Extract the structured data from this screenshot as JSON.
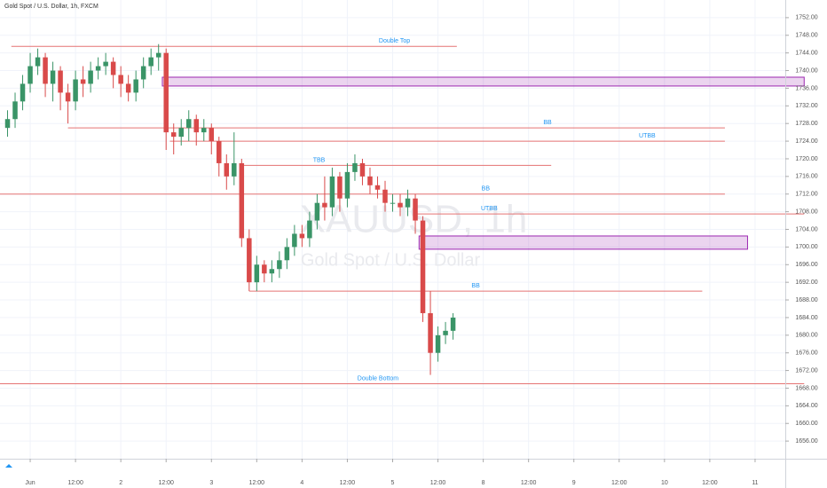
{
  "chart_data": {
    "type": "candlestick",
    "title": "Gold Spot / U.S. Dollar, 1h, FXCM",
    "watermark": "XAUUSD, 1h",
    "watermark_subtitle": "Gold Spot / U.S. Dollar",
    "up_color": "#3a9467",
    "down_color": "#d94a4a",
    "grid": true,
    "xlim": [
      -8,
      200
    ],
    "ylim": [
      1652,
      1756
    ],
    "xticks": [
      {
        "value": 0,
        "label": "Jun"
      },
      {
        "value": 12,
        "label": "12:00"
      },
      {
        "value": 24,
        "label": "2"
      },
      {
        "value": 36,
        "label": "12:00"
      },
      {
        "value": 48,
        "label": "3"
      },
      {
        "value": 60,
        "label": "12:00"
      },
      {
        "value": 72,
        "label": "4"
      },
      {
        "value": 84,
        "label": "12:00"
      },
      {
        "value": 96,
        "label": "5"
      },
      {
        "value": 108,
        "label": "12:00"
      },
      {
        "value": 120,
        "label": "8"
      },
      {
        "value": 132,
        "label": "12:00"
      },
      {
        "value": 144,
        "label": "9"
      },
      {
        "value": 156,
        "label": "12:00"
      },
      {
        "value": 168,
        "label": "10"
      },
      {
        "value": 180,
        "label": "12:00"
      },
      {
        "value": 192,
        "label": "11"
      }
    ],
    "yticks": [
      {
        "value": 1656,
        "label": "1656.00"
      },
      {
        "value": 1660,
        "label": "1660.00"
      },
      {
        "value": 1664,
        "label": "1664.00"
      },
      {
        "value": 1668,
        "label": "1668.00"
      },
      {
        "value": 1672,
        "label": "1672.00"
      },
      {
        "value": 1676,
        "label": "1676.00"
      },
      {
        "value": 1680,
        "label": "1680.00"
      },
      {
        "value": 1684,
        "label": "1684.00"
      },
      {
        "value": 1688,
        "label": "1688.00"
      },
      {
        "value": 1692,
        "label": "1692.00"
      },
      {
        "value": 1696,
        "label": "1696.00"
      },
      {
        "value": 1700,
        "label": "1700.00"
      },
      {
        "value": 1704,
        "label": "1704.00"
      },
      {
        "value": 1708,
        "label": "1708.00"
      },
      {
        "value": 1712,
        "label": "1712.00"
      },
      {
        "value": 1716,
        "label": "1716.00"
      },
      {
        "value": 1720,
        "label": "1720.00"
      },
      {
        "value": 1724,
        "label": "1724.00"
      },
      {
        "value": 1728,
        "label": "1728.00"
      },
      {
        "value": 1732,
        "label": "1732.00"
      },
      {
        "value": 1736,
        "label": "1736.00"
      },
      {
        "value": 1740,
        "label": "1740.00"
      },
      {
        "value": 1744,
        "label": "1744.00"
      },
      {
        "value": 1748,
        "label": "1748.00"
      },
      {
        "value": 1752,
        "label": "1752.00"
      }
    ],
    "x": [
      -6,
      -4,
      -2,
      0,
      2,
      4,
      6,
      8,
      10,
      12,
      14,
      16,
      18,
      20,
      22,
      24,
      26,
      28,
      30,
      32,
      34,
      36,
      38,
      40,
      42,
      44,
      46,
      48,
      50,
      52,
      54,
      56,
      58,
      60,
      62,
      64,
      66,
      68,
      70,
      72,
      74,
      76,
      78,
      80,
      82,
      84,
      86,
      88,
      90,
      92,
      94,
      96,
      98,
      100,
      102,
      104,
      106,
      108,
      110,
      112
    ],
    "open": [
      1727,
      1729,
      1733,
      1737,
      1741,
      1743,
      1737,
      1740,
      1735,
      1733,
      1738,
      1737,
      1740,
      1741,
      1742,
      1739,
      1737,
      1735,
      1738,
      1741,
      1743,
      1744,
      1726,
      1725,
      1727,
      1729,
      1726,
      1727,
      1724,
      1719,
      1716,
      1719,
      1702,
      1692,
      1696,
      1694,
      1695,
      1697,
      1700,
      1703,
      1702,
      1706,
      1710,
      1709,
      1716,
      1711,
      1717,
      1719,
      1716,
      1714,
      1713,
      1710,
      1710,
      1709,
      1711,
      1706,
      1685,
      1676,
      1680,
      1681
    ],
    "high": [
      1731,
      1735,
      1739,
      1744,
      1745,
      1744,
      1742,
      1741,
      1737,
      1740,
      1741,
      1742,
      1743,
      1744,
      1743,
      1741,
      1739,
      1740,
      1743,
      1745,
      1746,
      1745,
      1728,
      1729,
      1731,
      1730,
      1729,
      1728,
      1725,
      1721,
      1726,
      1720,
      1704,
      1698,
      1697,
      1697,
      1699,
      1702,
      1705,
      1705,
      1708,
      1712,
      1716,
      1718,
      1717,
      1719,
      1721,
      1720,
      1718,
      1716,
      1715,
      1712,
      1712,
      1713,
      1712,
      1707,
      1690,
      1682,
      1683,
      1685
    ],
    "low": [
      1725,
      1727,
      1731,
      1735,
      1739,
      1734,
      1733,
      1731,
      1728,
      1731,
      1734,
      1735,
      1738,
      1739,
      1736,
      1734,
      1733,
      1733,
      1736,
      1739,
      1740,
      1722,
      1721,
      1723,
      1724,
      1723,
      1724,
      1721,
      1716,
      1713,
      1714,
      1700,
      1690,
      1690,
      1692,
      1692,
      1693,
      1695,
      1698,
      1700,
      1700,
      1704,
      1706,
      1707,
      1708,
      1709,
      1715,
      1714,
      1712,
      1711,
      1708,
      1708,
      1707,
      1707,
      1703,
      1683,
      1671,
      1674,
      1678,
      1679
    ],
    "close": [
      1729,
      1733,
      1737,
      1741,
      1743,
      1737,
      1740,
      1735,
      1733,
      1738,
      1737,
      1740,
      1741,
      1742,
      1739,
      1737,
      1735,
      1738,
      1741,
      1743,
      1744,
      1726,
      1725,
      1727,
      1729,
      1726,
      1727,
      1724,
      1719,
      1716,
      1719,
      1702,
      1692,
      1696,
      1694,
      1695,
      1697,
      1700,
      1703,
      1702,
      1706,
      1710,
      1709,
      1716,
      1711,
      1717,
      1719,
      1716,
      1714,
      1713,
      1710,
      1710,
      1709,
      1711,
      1706,
      1685,
      1676,
      1680,
      1681,
      1684
    ],
    "levels": [
      {
        "label": "Double Top",
        "value": 1745.5,
        "start": -5,
        "end": 113,
        "color": "#e57373"
      },
      {
        "label": "BB",
        "value": 1727,
        "start": 10,
        "end": 184,
        "color": "#e57373"
      },
      {
        "label": "UTBB",
        "value": 1724,
        "start": 37,
        "end": 184,
        "color": "#e57373"
      },
      {
        "label": "TBB",
        "value": 1718.5,
        "start": 56,
        "end": 138,
        "color": "#e57373"
      },
      {
        "label": "BB",
        "value": 1712,
        "start": -8,
        "end": 184,
        "color": "#e57373"
      },
      {
        "label": "UTBB",
        "value": 1707.5,
        "start": 102,
        "end": 205,
        "color": "#e57373"
      },
      {
        "label": "BB",
        "value": 1690,
        "start": 58,
        "end": 178,
        "color": "#e57373"
      },
      {
        "label": "Double Bottom",
        "value": 1669,
        "start": -8,
        "end": 205,
        "color": "#e57373"
      }
    ],
    "zones": [
      {
        "range": [
          1736.5,
          1738.5
        ],
        "start": 35,
        "end": 205,
        "color": "#9c27b0"
      },
      {
        "range": [
          1699.5,
          1702.5
        ],
        "start": 103,
        "end": 190,
        "color": "#9c27b0"
      }
    ]
  }
}
